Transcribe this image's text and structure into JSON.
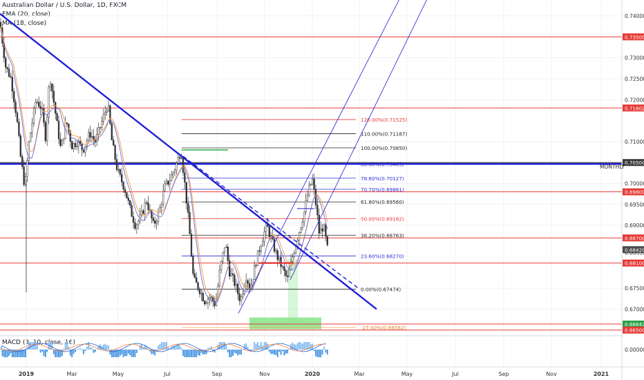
{
  "header": {
    "symbol_title": "Australian Dollar / U.S. Dollar, 1D, FXCM",
    "ema_label": "EMA (20, close)",
    "ma_label": "MA (18, close)",
    "macd_label": "MACD (3, 10, close, 16)"
  },
  "colors": {
    "candle": "#333333",
    "trendline": "#1f1fd6",
    "red_level": "#e53935",
    "fib_blue": "#3a3ae0",
    "fib_black": "#222222",
    "ema": "#f7a04b",
    "ma": "#6b6bd6",
    "green_box": "#8ee68e",
    "macd_hist": "#3d8fe0"
  },
  "chart_data": {
    "type": "candlestick",
    "title": "Australian Dollar / U.S. Dollar, 1D, FXCM",
    "x_ticks": [
      "2019",
      "Mar",
      "May",
      "Jul",
      "Sep",
      "Nov",
      "2020",
      "Mar",
      "May",
      "Jul",
      "Sep",
      "Nov",
      "2021"
    ],
    "y_ticks": [
      "0.74000",
      "0.73000",
      "0.72500",
      "0.72000",
      "0.71000",
      "0.70000",
      "0.69500",
      "0.69000",
      "0.68352",
      "0.67500",
      "0.67000"
    ],
    "ylim": [
      0.6638,
      0.7438
    ],
    "horizontal_levels": [
      {
        "value": 0.735,
        "label": "0.73500"
      },
      {
        "value": 0.71802,
        "label": "0.71802"
      },
      {
        "value": 0.705,
        "label": "0.70500"
      },
      {
        "value": 0.698,
        "label": "0.69800"
      },
      {
        "value": 0.687,
        "label": "0.68700"
      },
      {
        "value": 0.681,
        "label": "0.68100"
      },
      {
        "value": 0.66643,
        "label": "0.66643"
      },
      {
        "value": 0.665,
        "label": "0.66500"
      }
    ],
    "current_price": {
      "value": 0.6842,
      "label": "0.68420"
    },
    "monthly_label": "MONTHLY",
    "fibonacci_levels": [
      {
        "ratio": "120.00%",
        "value": 0.71525,
        "label": "120.00%(0.71525)"
      },
      {
        "ratio": "110.00%",
        "value": 0.71187,
        "label": "110.00%(0.71187)"
      },
      {
        "ratio": "100.00%",
        "value": 0.7085,
        "label": "100.00%(0.70850)"
      },
      {
        "ratio": "88.60%",
        "value": 0.70465,
        "label": "88.60%(0.70465)"
      },
      {
        "ratio": "78.60%",
        "value": 0.70127,
        "label": "78.60%(0.70127)"
      },
      {
        "ratio": "70.70%",
        "value": 0.69861,
        "label": "70.70%(0.69861)"
      },
      {
        "ratio": "61.80%",
        "value": 0.6956,
        "label": "61.80%(0.69560)"
      },
      {
        "ratio": "50.00%",
        "value": 0.69162,
        "label": "50.00%(0.69162)"
      },
      {
        "ratio": "38.20%",
        "value": 0.68763,
        "label": "38.20%(0.68763)"
      },
      {
        "ratio": "23.60%",
        "value": 0.6827,
        "label": "23.60%(0.68270)"
      },
      {
        "ratio": "0.00%",
        "value": 0.67474,
        "label": "0.00%(0.67474)"
      },
      {
        "ratio": "-27.00%",
        "value": 0.66562,
        "label": "-27.00%(0.66562)"
      }
    ],
    "macd_axis_label": "0.00000",
    "price_path": [
      [
        0,
        0.7385
      ],
      [
        8,
        0.728
      ],
      [
        16,
        0.725
      ],
      [
        24,
        0.716
      ],
      [
        30,
        0.706
      ],
      [
        36,
        0.699
      ],
      [
        42,
        0.71
      ],
      [
        52,
        0.72
      ],
      [
        60,
        0.718
      ],
      [
        66,
        0.711
      ],
      [
        72,
        0.726
      ],
      [
        80,
        0.717
      ],
      [
        88,
        0.708
      ],
      [
        96,
        0.715
      ],
      [
        104,
        0.709
      ],
      [
        112,
        0.71
      ],
      [
        120,
        0.708
      ],
      [
        130,
        0.712
      ],
      [
        138,
        0.71
      ],
      [
        148,
        0.715
      ],
      [
        156,
        0.719
      ],
      [
        162,
        0.71
      ],
      [
        170,
        0.703
      ],
      [
        180,
        0.699
      ],
      [
        188,
        0.694
      ],
      [
        196,
        0.69
      ],
      [
        204,
        0.692
      ],
      [
        212,
        0.696
      ],
      [
        222,
        0.69
      ],
      [
        230,
        0.693
      ],
      [
        238,
        0.699
      ],
      [
        246,
        0.701
      ],
      [
        254,
        0.704
      ],
      [
        262,
        0.708
      ],
      [
        268,
        0.699
      ],
      [
        274,
        0.689
      ],
      [
        280,
        0.677
      ],
      [
        288,
        0.675
      ],
      [
        296,
        0.672
      ],
      [
        304,
        0.673
      ],
      [
        312,
        0.671
      ],
      [
        318,
        0.679
      ],
      [
        326,
        0.686
      ],
      [
        332,
        0.679
      ],
      [
        340,
        0.676
      ],
      [
        348,
        0.672
      ],
      [
        356,
        0.678
      ],
      [
        362,
        0.675
      ],
      [
        370,
        0.681
      ],
      [
        378,
        0.686
      ],
      [
        386,
        0.69
      ],
      [
        394,
        0.686
      ],
      [
        400,
        0.683
      ],
      [
        408,
        0.68
      ],
      [
        416,
        0.677
      ],
      [
        424,
        0.683
      ],
      [
        432,
        0.688
      ],
      [
        440,
        0.693
      ],
      [
        446,
        0.698
      ],
      [
        452,
        0.701
      ],
      [
        458,
        0.694
      ],
      [
        462,
        0.688
      ],
      [
        468,
        0.69
      ],
      [
        474,
        0.6842
      ]
    ]
  }
}
